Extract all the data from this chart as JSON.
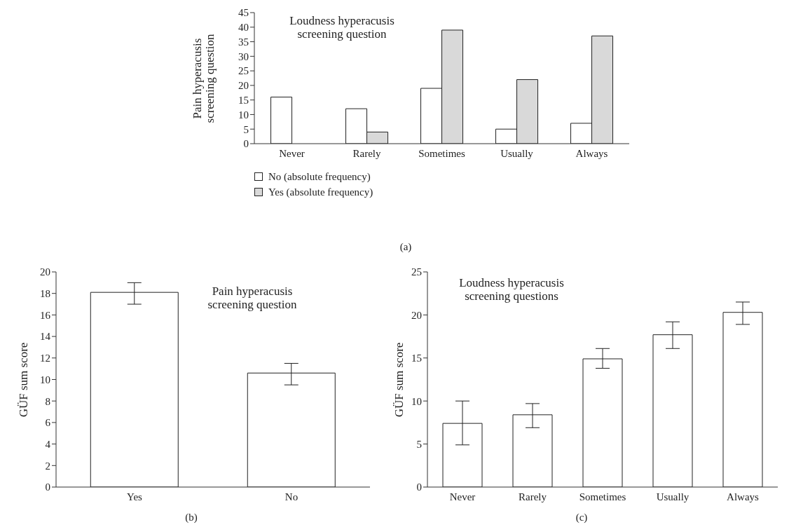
{
  "chart_data": [
    {
      "type": "bar",
      "categories": [
        "Never",
        "Rarely",
        "Sometimes",
        "Usually",
        "Always"
      ],
      "ylabel": "Pain hyperacusis screening question",
      "ylim": [
        0,
        45
      ],
      "yticks": [
        0,
        5,
        10,
        15,
        20,
        25,
        30,
        35,
        40,
        45
      ],
      "grid": false,
      "legend": "bottom",
      "annotations": [
        "Loudness hyperacusis screening question",
        "(a)"
      ],
      "series": [
        {
          "name": "No (absolute frequency)",
          "color": "#ffffff",
          "values": [
            16,
            12,
            19,
            5,
            7
          ]
        },
        {
          "name": "Yes (absolute frequency)",
          "color": "#d9d9d9",
          "values": [
            null,
            4,
            39,
            22,
            37
          ]
        }
      ]
    },
    {
      "type": "bar",
      "categories": [
        "Yes",
        "No"
      ],
      "ylabel": "GÜF sum score",
      "ylim": [
        0,
        20
      ],
      "yticks": [
        0,
        2,
        4,
        6,
        8,
        10,
        12,
        14,
        16,
        18,
        20
      ],
      "grid": false,
      "legend": false,
      "annotations": [
        "Pain hyperacusis screening question",
        "(b)"
      ],
      "series": [
        {
          "color": "#ffffff",
          "values": [
            18.1,
            10.6
          ],
          "errors": [
            [
              17,
              19
            ],
            [
              9.5,
              11.5
            ]
          ]
        }
      ]
    },
    {
      "type": "bar",
      "categories": [
        "Never",
        "Rarely",
        "Sometimes",
        "Usually",
        "Always"
      ],
      "ylabel": "GÜF sum score",
      "ylim": [
        0,
        25
      ],
      "yticks": [
        0,
        5,
        10,
        15,
        20,
        25
      ],
      "grid": false,
      "legend": false,
      "annotations": [
        "Loudness hyperacusis screening questions",
        "(c)"
      ],
      "series": [
        {
          "color": "#ffffff",
          "values": [
            7.4,
            8.4,
            14.9,
            17.7,
            20.3
          ],
          "errors": [
            [
              4.9,
              10
            ],
            [
              6.9,
              9.7
            ],
            [
              13.8,
              16.1
            ],
            [
              16.1,
              19.2
            ],
            [
              18.9,
              21.5
            ]
          ]
        }
      ]
    }
  ]
}
